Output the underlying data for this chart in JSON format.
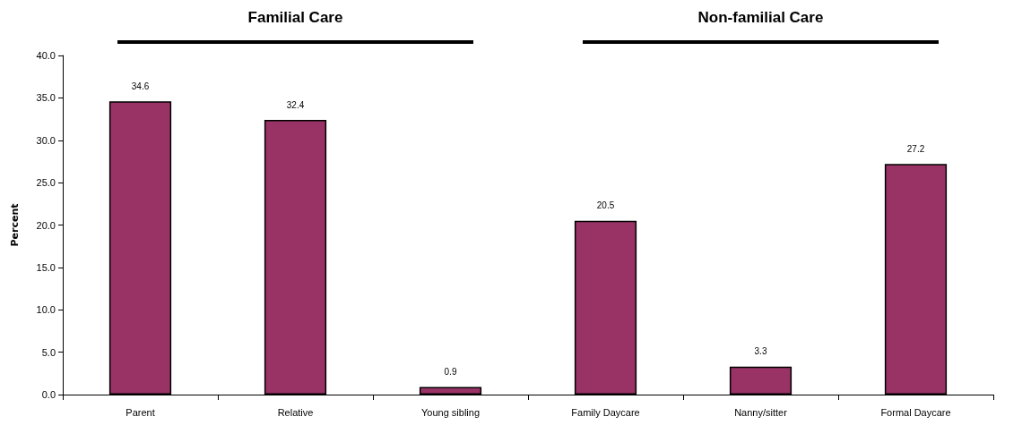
{
  "chart_data": {
    "type": "bar",
    "ylabel": "Percent",
    "categories": [
      "Parent",
      "Relative",
      "Young sibling",
      "Family Daycare",
      "Nanny/sitter",
      "Formal Daycare"
    ],
    "values": [
      34.6,
      32.4,
      0.9,
      20.5,
      3.3,
      27.2
    ],
    "color": "#993366",
    "data_labels": true,
    "grid": false,
    "ylim": [
      0,
      40
    ],
    "yticks": [
      {
        "value": 0,
        "label": "0.0"
      },
      {
        "value": 5,
        "label": "5.0"
      },
      {
        "value": 10,
        "label": "10.0"
      },
      {
        "value": 15,
        "label": "15.0"
      },
      {
        "value": 20,
        "label": "20.0"
      },
      {
        "value": 25,
        "label": "25.0"
      },
      {
        "value": 30,
        "label": "30.0"
      },
      {
        "value": 35,
        "label": "35.0"
      },
      {
        "value": 40,
        "label": "40.0"
      }
    ],
    "annotations": [
      "Familial Care",
      "Non-familial Care"
    ]
  }
}
